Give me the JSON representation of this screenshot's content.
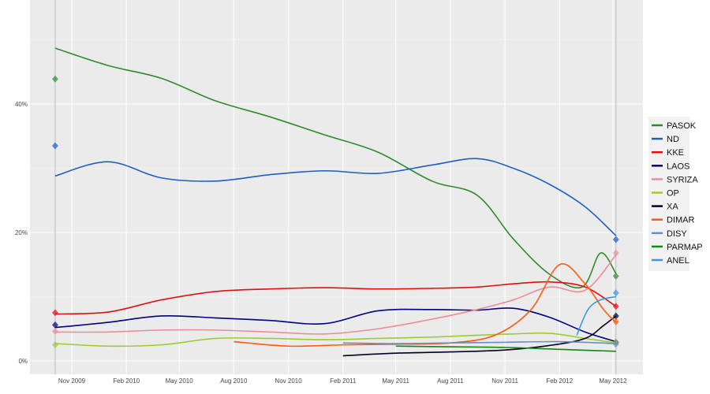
{
  "chart_data": {
    "type": "line",
    "title": "",
    "xlabel": "",
    "ylabel": "",
    "ylim": [
      0,
      56
    ],
    "xlim": [
      "2009-09-20",
      "2012-06-20"
    ],
    "x_ticks": [
      {
        "date": "2009-11-01",
        "label": "Nov 2009"
      },
      {
        "date": "2010-02-01",
        "label": "Feb 2010"
      },
      {
        "date": "2010-05-01",
        "label": "May 2010"
      },
      {
        "date": "2010-08-01",
        "label": "Aug 2010"
      },
      {
        "date": "2010-11-01",
        "label": "Nov 2010"
      },
      {
        "date": "2011-02-01",
        "label": "Feb 2011"
      },
      {
        "date": "2011-05-01",
        "label": "May 2011"
      },
      {
        "date": "2011-08-01",
        "label": "Aug 2011"
      },
      {
        "date": "2011-11-01",
        "label": "Nov 2011"
      },
      {
        "date": "2012-02-01",
        "label": "Feb 2012"
      },
      {
        "date": "2012-05-01",
        "label": "May 2012"
      }
    ],
    "y_ticks": [
      {
        "value": 0,
        "label": "0%"
      },
      {
        "value": 20,
        "label": "20%"
      },
      {
        "value": 40,
        "label": "40%"
      }
    ],
    "election_dates": [
      "2009-10-04",
      "2012-05-06"
    ],
    "grid": true,
    "legend_position": "right",
    "series": [
      {
        "name": "PASOK",
        "color": "#2e8b2e",
        "x": [
          "2009-10-04",
          "2010-01-01",
          "2010-04-01",
          "2010-07-01",
          "2010-10-01",
          "2011-01-01",
          "2011-04-01",
          "2011-07-01",
          "2011-09-15",
          "2011-11-15",
          "2012-01-15",
          "2012-03-10",
          "2012-04-10",
          "2012-05-06"
        ],
        "values": [
          48.7,
          46,
          44,
          40.5,
          38,
          35.2,
          32.5,
          28,
          25.8,
          19,
          13.5,
          11.5,
          16.8,
          13.6
        ],
        "result": [
          {
            "date": "2009-10-04",
            "value": 43.9
          },
          {
            "date": "2012-05-06",
            "value": 13.2
          }
        ]
      },
      {
        "name": "ND",
        "color": "#1f5fbf",
        "x": [
          "2009-10-04",
          "2010-01-01",
          "2010-04-01",
          "2010-07-01",
          "2010-10-01",
          "2011-01-01",
          "2011-04-01",
          "2011-07-01",
          "2011-09-15",
          "2011-11-15",
          "2012-01-15",
          "2012-03-15",
          "2012-05-06"
        ],
        "values": [
          28.8,
          31,
          28.5,
          28,
          29,
          29.6,
          29.2,
          30.5,
          31.5,
          30,
          27.5,
          24,
          19.5
        ],
        "result": [
          {
            "date": "2009-10-04",
            "value": 33.5
          },
          {
            "date": "2012-05-06",
            "value": 18.9
          }
        ]
      },
      {
        "name": "KKE",
        "color": "#e01010",
        "x": [
          "2009-10-04",
          "2010-01-01",
          "2010-04-01",
          "2010-07-01",
          "2010-10-01",
          "2011-01-01",
          "2011-04-01",
          "2011-07-01",
          "2011-09-15",
          "2011-11-15",
          "2012-01-15",
          "2012-03-15",
          "2012-05-06"
        ],
        "values": [
          7.3,
          7.6,
          9.5,
          10.8,
          11.2,
          11.4,
          11.2,
          11.3,
          11.5,
          12,
          12.3,
          11.5,
          8.5
        ],
        "result": [
          {
            "date": "2009-10-04",
            "value": 7.5
          },
          {
            "date": "2012-05-06",
            "value": 8.5
          }
        ]
      },
      {
        "name": "LAOS",
        "color": "#000080",
        "x": [
          "2009-10-04",
          "2010-01-01",
          "2010-04-01",
          "2010-07-01",
          "2010-10-01",
          "2011-01-01",
          "2011-04-01",
          "2011-07-01",
          "2011-09-15",
          "2011-11-15",
          "2012-01-15",
          "2012-03-15",
          "2012-05-06"
        ],
        "values": [
          5.2,
          6,
          7,
          6.7,
          6.3,
          5.8,
          7.8,
          8,
          7.9,
          8.2,
          6.8,
          4.5,
          3
        ],
        "result": [
          {
            "date": "2009-10-04",
            "value": 5.6
          },
          {
            "date": "2012-05-06",
            "value": 2.9
          }
        ]
      },
      {
        "name": "SYRIZA",
        "color": "#f08a9a",
        "x": [
          "2009-10-04",
          "2010-01-01",
          "2010-04-01",
          "2010-07-01",
          "2010-10-01",
          "2011-01-01",
          "2011-04-01",
          "2011-07-01",
          "2011-09-15",
          "2011-11-15",
          "2012-01-15",
          "2012-03-15",
          "2012-05-06"
        ],
        "values": [
          4.5,
          4.5,
          4.8,
          4.8,
          4.5,
          4.2,
          5,
          6.5,
          8,
          9.5,
          11.5,
          11,
          16.5
        ],
        "result": [
          {
            "date": "2009-10-04",
            "value": 4.6
          },
          {
            "date": "2012-05-06",
            "value": 16.8
          }
        ]
      },
      {
        "name": "OP",
        "color": "#9acd32",
        "x": [
          "2009-10-04",
          "2010-01-01",
          "2010-04-01",
          "2010-07-01",
          "2010-10-01",
          "2011-01-01",
          "2011-04-01",
          "2011-07-01",
          "2011-09-15",
          "2011-11-15",
          "2012-01-15",
          "2012-03-15",
          "2012-05-06"
        ],
        "values": [
          2.7,
          2.3,
          2.5,
          3.5,
          3.5,
          3.3,
          3.5,
          3.7,
          4,
          4.2,
          4.3,
          3.5,
          2.8
        ],
        "result": [
          {
            "date": "2009-10-04",
            "value": 2.5
          },
          {
            "date": "2012-05-06",
            "value": 2.9
          }
        ]
      },
      {
        "name": "XA",
        "color": "#000022",
        "x": [
          "2011-02-01",
          "2011-05-01",
          "2011-08-01",
          "2011-11-01",
          "2012-01-15",
          "2012-03-15",
          "2012-04-15",
          "2012-05-06"
        ],
        "values": [
          0.8,
          1.2,
          1.4,
          1.7,
          2.4,
          3.5,
          5.5,
          7
        ],
        "result": [
          {
            "date": "2012-05-06",
            "value": 7.0
          }
        ]
      },
      {
        "name": "DIMAR",
        "color": "#ff5a10",
        "x": [
          "2010-08-01",
          "2010-11-01",
          "2011-02-01",
          "2011-05-01",
          "2011-08-01",
          "2011-10-15",
          "2011-12-15",
          "2012-02-01",
          "2012-03-15",
          "2012-04-15",
          "2012-05-06"
        ],
        "values": [
          3,
          2.3,
          2.5,
          2.6,
          2.8,
          4,
          8,
          15,
          12,
          8,
          6
        ],
        "result": [
          {
            "date": "2012-05-06",
            "value": 6.1
          }
        ]
      },
      {
        "name": "DISY",
        "color": "#6b8ccc",
        "x": [
          "2011-02-01",
          "2011-05-01",
          "2011-08-01",
          "2011-11-01",
          "2012-02-01",
          "2012-05-06"
        ],
        "values": [
          2.8,
          2.7,
          2.8,
          2.9,
          3,
          2.7
        ],
        "result": [
          {
            "date": "2012-05-06",
            "value": 2.6
          }
        ]
      },
      {
        "name": "PARMAP",
        "color": "#108a10",
        "x": [
          "2011-05-01",
          "2011-08-01",
          "2011-11-01",
          "2012-02-01",
          "2012-05-06"
        ],
        "values": [
          2.3,
          2.2,
          2.1,
          1.8,
          1.5
        ],
        "result": []
      },
      {
        "name": "ANEL",
        "color": "#3a9ade",
        "x": [
          "2012-03-01",
          "2012-03-20",
          "2012-04-10",
          "2012-05-06"
        ],
        "values": [
          4,
          8,
          9.5,
          10
        ],
        "result": [
          {
            "date": "2012-05-06",
            "value": 10.6
          }
        ]
      }
    ]
  }
}
